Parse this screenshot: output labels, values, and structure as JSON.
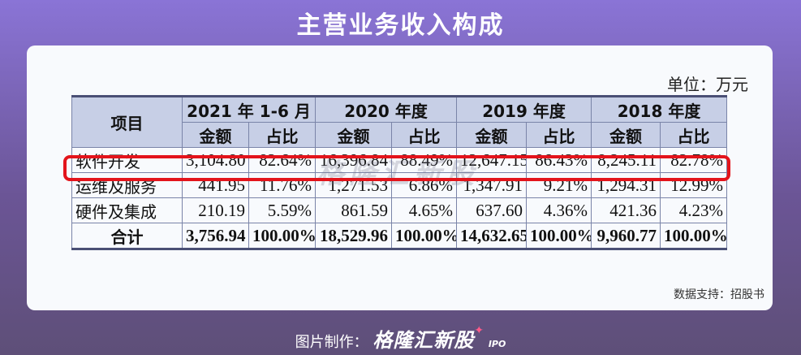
{
  "title": "主营业务收入构成",
  "unit": "单位：万元",
  "table": {
    "row_header": "项目",
    "periods": [
      "2021 年 1-6 月",
      "2020 年度",
      "2019 年度",
      "2018 年度"
    ],
    "sub_headers": [
      "金额",
      "占比"
    ],
    "rows": [
      {
        "label": "软件开发",
        "values": [
          "3,104.80",
          "82.64%",
          "16,396.84",
          "88.49%",
          "12,647.15",
          "86.43%",
          "8,245.11",
          "82.78%"
        ]
      },
      {
        "label": "运维及服务",
        "values": [
          "441.95",
          "11.76%",
          "1,271.53",
          "6.86%",
          "1,347.91",
          "9.21%",
          "1,294.31",
          "12.99%"
        ]
      },
      {
        "label": "硬件及集成",
        "values": [
          "210.19",
          "5.59%",
          "861.59",
          "4.65%",
          "637.60",
          "4.36%",
          "421.36",
          "4.23%"
        ]
      }
    ],
    "total": {
      "label": "合计",
      "values": [
        "3,756.94",
        "100.00%",
        "18,529.96",
        "100.00%",
        "14,632.65",
        "100.00%",
        "9,960.77",
        "100.00%"
      ]
    }
  },
  "watermark": "格隆汇新股",
  "source": "数据支持：招股书",
  "footer": {
    "prefix": "图片制作：",
    "brand": "格隆汇新股",
    "suffix": "IPO"
  },
  "colors": {
    "highlight": "#e3141b",
    "header_bg": "#c7cfe6",
    "card_bg": "#f8fafd"
  }
}
